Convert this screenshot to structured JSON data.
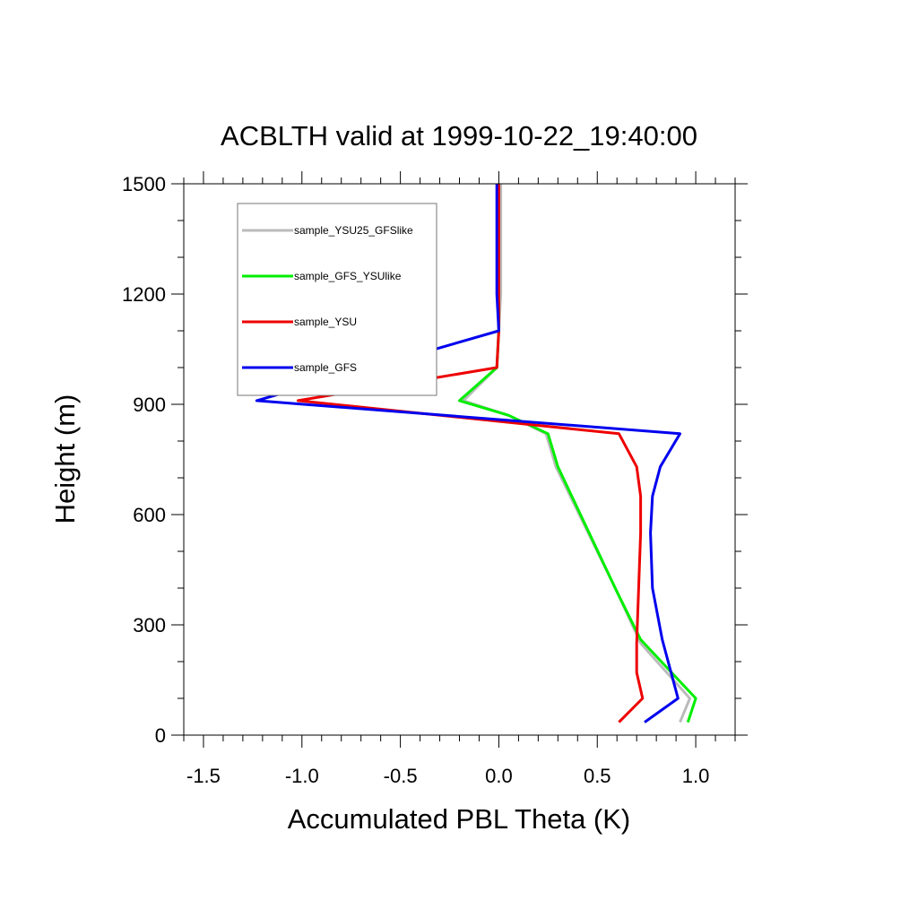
{
  "chart_data": {
    "type": "line",
    "title": "ACBLTH valid at 1999-10-22_19:40:00",
    "xlabel": "Accumulated PBL Theta (K)",
    "ylabel": "Height (m)",
    "xlim": [
      -1.6,
      1.2
    ],
    "ylim": [
      0,
      1500
    ],
    "x_ticks": [
      -1.5,
      -1.0,
      -0.5,
      0.0,
      0.5,
      1.0
    ],
    "x_tick_labels": [
      "-1.5",
      "-1.0",
      "-0.5",
      "0.0",
      "0.5",
      "1.0"
    ],
    "y_ticks": [
      0,
      300,
      600,
      900,
      1200,
      1500
    ],
    "y_tick_labels": [
      "0",
      "300",
      "600",
      "900",
      "1200",
      "1500"
    ],
    "legend_position": "top-left",
    "series": [
      {
        "name": "sample_YSU25_GFSlike",
        "color": "#bbbbbb",
        "points": [
          [
            0.92,
            35
          ],
          [
            0.97,
            100
          ],
          [
            0.72,
            250
          ],
          [
            0.6,
            390
          ],
          [
            0.29,
            730
          ],
          [
            0.24,
            820
          ],
          [
            0.05,
            870
          ],
          [
            -0.18,
            910
          ],
          [
            -0.01,
            1000
          ],
          [
            0.0,
            1100
          ],
          [
            0.01,
            1200
          ],
          [
            0.01,
            1500
          ]
        ]
      },
      {
        "name": "sample_GFS_YSUlike",
        "color": "#00ee00",
        "points": [
          [
            0.96,
            35
          ],
          [
            1.0,
            100
          ],
          [
            0.72,
            260
          ],
          [
            0.6,
            390
          ],
          [
            0.3,
            730
          ],
          [
            0.25,
            820
          ],
          [
            0.05,
            870
          ],
          [
            -0.2,
            910
          ],
          [
            -0.01,
            1000
          ],
          [
            0.0,
            1100
          ],
          [
            0.0,
            1200
          ],
          [
            0.0,
            1500
          ]
        ]
      },
      {
        "name": "sample_YSU",
        "color": "#ee0000",
        "points": [
          [
            0.61,
            35
          ],
          [
            0.73,
            100
          ],
          [
            0.7,
            170
          ],
          [
            0.7,
            250
          ],
          [
            0.71,
            400
          ],
          [
            0.72,
            550
          ],
          [
            0.72,
            650
          ],
          [
            0.7,
            730
          ],
          [
            0.61,
            820
          ],
          [
            -1.02,
            910
          ],
          [
            -0.01,
            1000
          ],
          [
            0.0,
            1100
          ],
          [
            0.0,
            1200
          ],
          [
            0.0,
            1500
          ]
        ]
      },
      {
        "name": "sample_GFS",
        "color": "#0000ee",
        "points": [
          [
            0.74,
            35
          ],
          [
            0.91,
            100
          ],
          [
            0.83,
            260
          ],
          [
            0.78,
            400
          ],
          [
            0.77,
            550
          ],
          [
            0.78,
            650
          ],
          [
            0.82,
            730
          ],
          [
            0.92,
            820
          ],
          [
            -1.23,
            910
          ],
          [
            0.0,
            1100
          ],
          [
            -0.01,
            1200
          ],
          [
            -0.01,
            1500
          ]
        ]
      }
    ]
  }
}
